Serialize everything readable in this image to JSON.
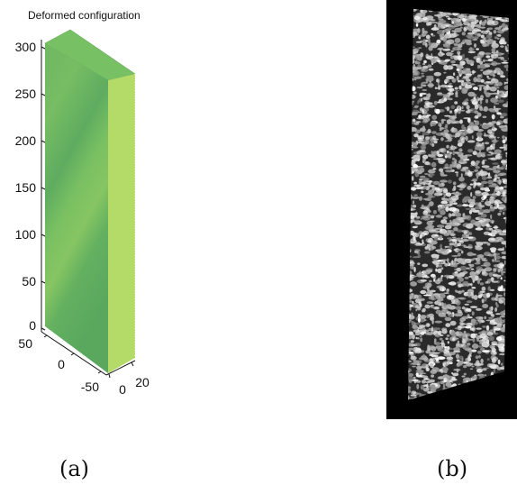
{
  "panel_a": {
    "title": "Deformed configuration",
    "caption": "(a)",
    "z_ticks": [
      "300",
      "250",
      "200",
      "150",
      "100",
      "50",
      "0"
    ],
    "x_ticks": [
      "50",
      "0",
      "-50"
    ],
    "y_ticks": [
      "0",
      "20"
    ],
    "colors": {
      "front_face": "#6ab563",
      "side_face": "#b4db68",
      "top_face": "#78c064",
      "axis": "#111111"
    }
  },
  "panel_b": {
    "caption": "(b)",
    "colors": {
      "background": "#000000",
      "speckle_light": "#e6e6e6"
    }
  }
}
